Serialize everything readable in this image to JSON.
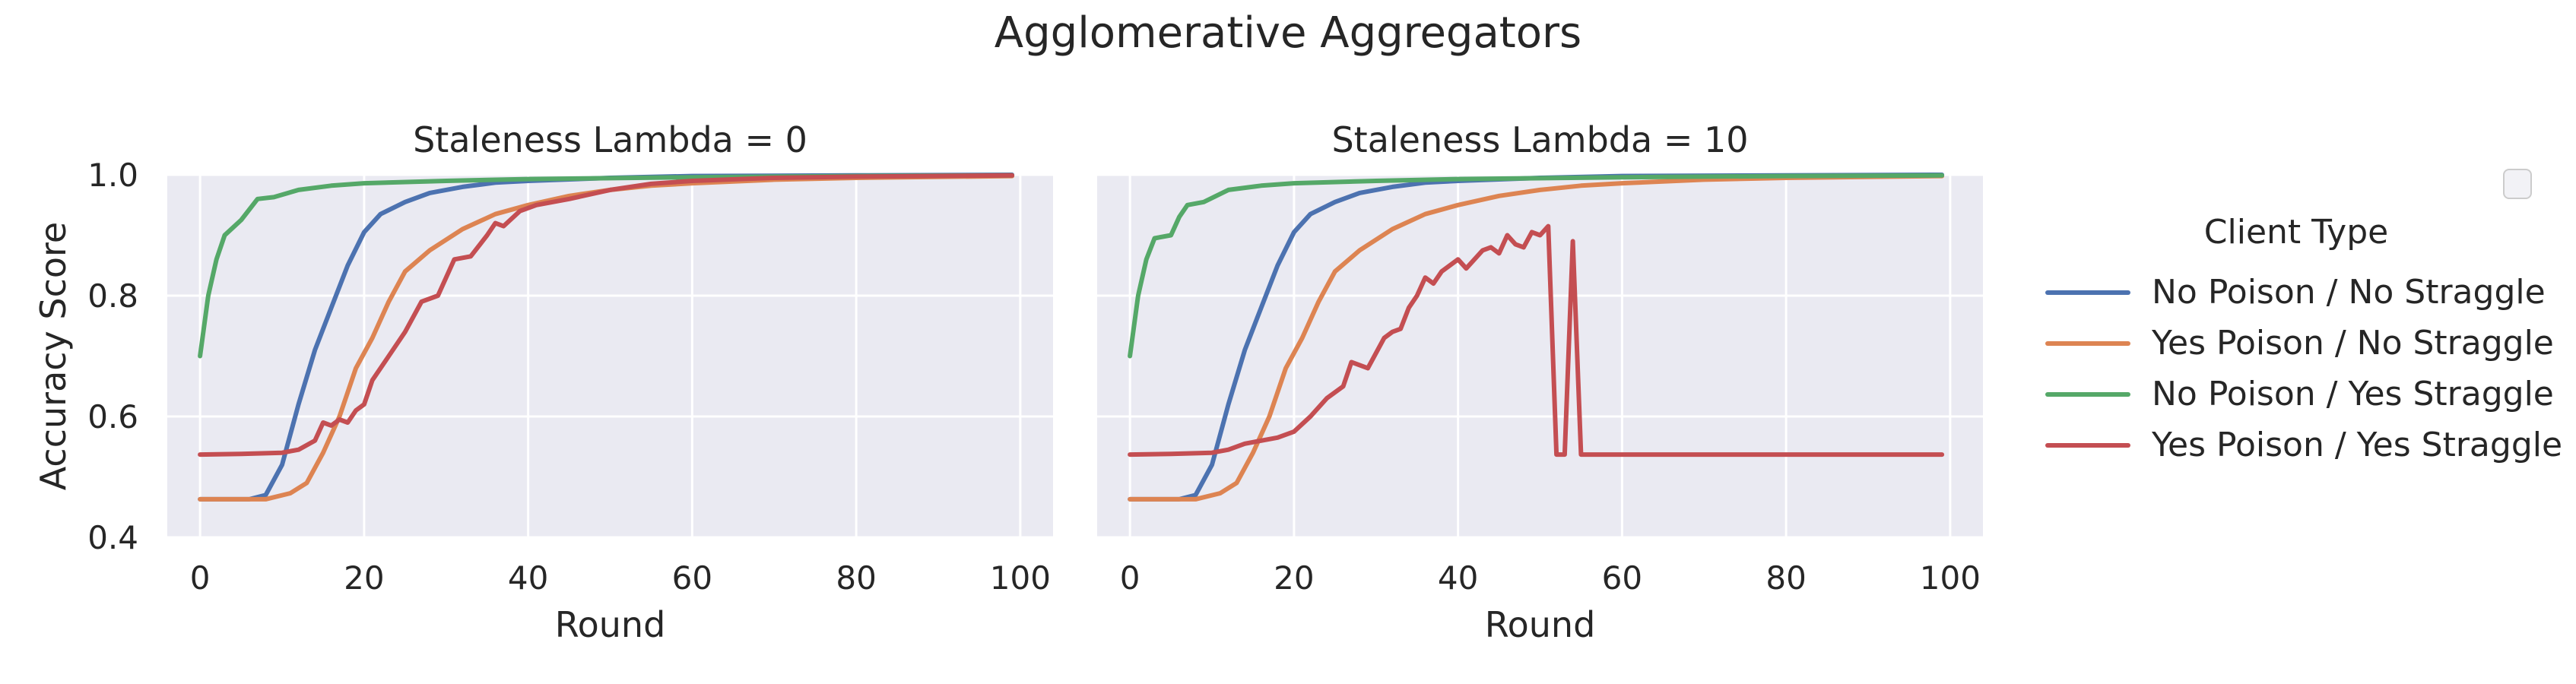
{
  "title": "Agglomerative Aggregators",
  "legend": {
    "title": "Client Type",
    "items": [
      {
        "label": "No Poison / No Straggle",
        "color": "#4c72b0"
      },
      {
        "label": "Yes Poison / No Straggle",
        "color": "#dd8452"
      },
      {
        "label": "No Poison / Yes Straggle",
        "color": "#55a868"
      },
      {
        "label": "Yes Poison / Yes Straggle",
        "color": "#c44e52"
      }
    ]
  },
  "chart_data": [
    {
      "type": "line",
      "title": "Staleness Lambda = 0",
      "xlabel": "Round",
      "ylabel": "Accuracy Score",
      "xlim": [
        -4,
        104
      ],
      "ylim": [
        0.4,
        1.0
      ],
      "xticks": [
        "0",
        "20",
        "40",
        "60",
        "80",
        "100"
      ],
      "yticks": [
        "0.4",
        "0.6",
        "0.8",
        "1.0"
      ],
      "grid": true,
      "series": [
        {
          "name": "No Poison / No Straggle",
          "color": "#4c72b0",
          "points": [
            [
              0,
              0.463
            ],
            [
              6,
              0.463
            ],
            [
              8,
              0.47
            ],
            [
              10,
              0.52
            ],
            [
              12,
              0.62
            ],
            [
              14,
              0.71
            ],
            [
              16,
              0.78
            ],
            [
              18,
              0.85
            ],
            [
              20,
              0.905
            ],
            [
              22,
              0.935
            ],
            [
              25,
              0.955
            ],
            [
              28,
              0.97
            ],
            [
              32,
              0.98
            ],
            [
              36,
              0.987
            ],
            [
              40,
              0.99
            ],
            [
              50,
              0.995
            ],
            [
              60,
              0.998
            ],
            [
              80,
              0.999
            ],
            [
              99,
              1.0
            ]
          ]
        },
        {
          "name": "Yes Poison / No Straggle",
          "color": "#dd8452",
          "points": [
            [
              0,
              0.463
            ],
            [
              8,
              0.463
            ],
            [
              11,
              0.473
            ],
            [
              13,
              0.49
            ],
            [
              15,
              0.54
            ],
            [
              17,
              0.6
            ],
            [
              19,
              0.68
            ],
            [
              21,
              0.73
            ],
            [
              23,
              0.79
            ],
            [
              25,
              0.84
            ],
            [
              28,
              0.875
            ],
            [
              32,
              0.91
            ],
            [
              36,
              0.935
            ],
            [
              40,
              0.95
            ],
            [
              45,
              0.965
            ],
            [
              50,
              0.975
            ],
            [
              55,
              0.982
            ],
            [
              60,
              0.986
            ],
            [
              70,
              0.992
            ],
            [
              80,
              0.995
            ],
            [
              99,
              0.998
            ]
          ]
        },
        {
          "name": "No Poison / Yes Straggle",
          "color": "#55a868",
          "points": [
            [
              0,
              0.7
            ],
            [
              1,
              0.8
            ],
            [
              2,
              0.86
            ],
            [
              3,
              0.9
            ],
            [
              5,
              0.925
            ],
            [
              7,
              0.96
            ],
            [
              9,
              0.963
            ],
            [
              12,
              0.975
            ],
            [
              16,
              0.982
            ],
            [
              20,
              0.986
            ],
            [
              30,
              0.99
            ],
            [
              40,
              0.993
            ],
            [
              60,
              0.996
            ],
            [
              80,
              0.998
            ],
            [
              99,
              0.999
            ]
          ]
        },
        {
          "name": "Yes Poison / Yes Straggle",
          "color": "#c44e52",
          "points": [
            [
              0,
              0.537
            ],
            [
              5,
              0.538
            ],
            [
              10,
              0.54
            ],
            [
              12,
              0.545
            ],
            [
              14,
              0.56
            ],
            [
              15,
              0.59
            ],
            [
              16,
              0.585
            ],
            [
              17,
              0.595
            ],
            [
              18,
              0.59
            ],
            [
              19,
              0.61
            ],
            [
              20,
              0.62
            ],
            [
              21,
              0.66
            ],
            [
              23,
              0.7
            ],
            [
              25,
              0.74
            ],
            [
              27,
              0.79
            ],
            [
              29,
              0.8
            ],
            [
              31,
              0.86
            ],
            [
              33,
              0.865
            ],
            [
              35,
              0.9
            ],
            [
              36,
              0.92
            ],
            [
              37,
              0.915
            ],
            [
              39,
              0.94
            ],
            [
              41,
              0.95
            ],
            [
              45,
              0.96
            ],
            [
              50,
              0.975
            ],
            [
              55,
              0.985
            ],
            [
              60,
              0.99
            ],
            [
              70,
              0.995
            ],
            [
              80,
              0.997
            ],
            [
              99,
              0.999
            ]
          ]
        }
      ]
    },
    {
      "type": "line",
      "title": "Staleness Lambda = 10",
      "xlabel": "Round",
      "ylabel": "",
      "xlim": [
        -4,
        104
      ],
      "ylim": [
        0.4,
        1.0
      ],
      "xticks": [
        "0",
        "20",
        "40",
        "60",
        "80",
        "100"
      ],
      "yticks": [],
      "grid": true,
      "series": [
        {
          "name": "No Poison / No Straggle",
          "color": "#4c72b0",
          "points": [
            [
              0,
              0.463
            ],
            [
              6,
              0.463
            ],
            [
              8,
              0.47
            ],
            [
              10,
              0.52
            ],
            [
              12,
              0.62
            ],
            [
              14,
              0.71
            ],
            [
              16,
              0.78
            ],
            [
              18,
              0.85
            ],
            [
              20,
              0.905
            ],
            [
              22,
              0.935
            ],
            [
              25,
              0.955
            ],
            [
              28,
              0.97
            ],
            [
              32,
              0.98
            ],
            [
              36,
              0.987
            ],
            [
              40,
              0.99
            ],
            [
              50,
              0.995
            ],
            [
              60,
              0.998
            ],
            [
              80,
              0.999
            ],
            [
              99,
              1.0
            ]
          ]
        },
        {
          "name": "Yes Poison / No Straggle",
          "color": "#dd8452",
          "points": [
            [
              0,
              0.463
            ],
            [
              8,
              0.463
            ],
            [
              11,
              0.473
            ],
            [
              13,
              0.49
            ],
            [
              15,
              0.54
            ],
            [
              17,
              0.6
            ],
            [
              19,
              0.68
            ],
            [
              21,
              0.73
            ],
            [
              23,
              0.79
            ],
            [
              25,
              0.84
            ],
            [
              28,
              0.875
            ],
            [
              32,
              0.91
            ],
            [
              36,
              0.935
            ],
            [
              40,
              0.95
            ],
            [
              45,
              0.965
            ],
            [
              50,
              0.975
            ],
            [
              55,
              0.982
            ],
            [
              60,
              0.986
            ],
            [
              70,
              0.992
            ],
            [
              80,
              0.995
            ],
            [
              99,
              0.998
            ]
          ]
        },
        {
          "name": "No Poison / Yes Straggle",
          "color": "#55a868",
          "points": [
            [
              0,
              0.7
            ],
            [
              1,
              0.8
            ],
            [
              2,
              0.86
            ],
            [
              3,
              0.895
            ],
            [
              5,
              0.9
            ],
            [
              6,
              0.93
            ],
            [
              7,
              0.95
            ],
            [
              9,
              0.955
            ],
            [
              12,
              0.975
            ],
            [
              16,
              0.982
            ],
            [
              20,
              0.986
            ],
            [
              30,
              0.99
            ],
            [
              40,
              0.993
            ],
            [
              60,
              0.996
            ],
            [
              80,
              0.998
            ],
            [
              99,
              0.999
            ]
          ]
        },
        {
          "name": "Yes Poison / Yes Straggle",
          "color": "#c44e52",
          "points": [
            [
              0,
              0.537
            ],
            [
              5,
              0.538
            ],
            [
              10,
              0.54
            ],
            [
              12,
              0.545
            ],
            [
              14,
              0.555
            ],
            [
              16,
              0.56
            ],
            [
              18,
              0.565
            ],
            [
              20,
              0.575
            ],
            [
              22,
              0.6
            ],
            [
              24,
              0.63
            ],
            [
              26,
              0.65
            ],
            [
              27,
              0.69
            ],
            [
              29,
              0.68
            ],
            [
              31,
              0.73
            ],
            [
              32,
              0.74
            ],
            [
              33,
              0.745
            ],
            [
              34,
              0.78
            ],
            [
              35,
              0.8
            ],
            [
              36,
              0.83
            ],
            [
              37,
              0.82
            ],
            [
              38,
              0.84
            ],
            [
              40,
              0.86
            ],
            [
              41,
              0.845
            ],
            [
              43,
              0.875
            ],
            [
              44,
              0.88
            ],
            [
              45,
              0.87
            ],
            [
              46,
              0.9
            ],
            [
              47,
              0.885
            ],
            [
              48,
              0.88
            ],
            [
              49,
              0.905
            ],
            [
              50,
              0.9
            ],
            [
              51,
              0.915
            ],
            [
              52,
              0.537
            ],
            [
              53,
              0.537
            ],
            [
              54,
              0.89
            ],
            [
              55,
              0.537
            ],
            [
              60,
              0.537
            ],
            [
              80,
              0.537
            ],
            [
              99,
              0.537
            ]
          ]
        }
      ]
    }
  ]
}
